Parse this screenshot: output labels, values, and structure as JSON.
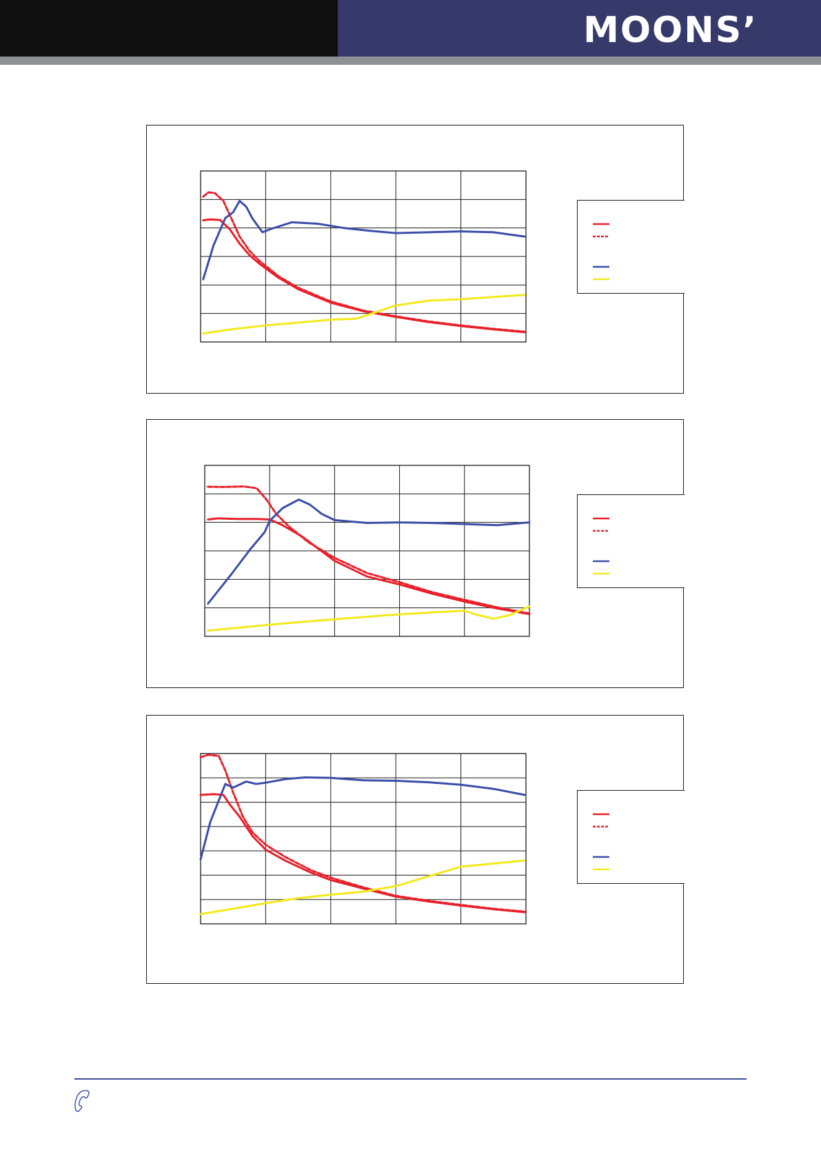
{
  "header": {
    "logo_text": "MOONS’",
    "colors": {
      "black_block": "#0f0f0f",
      "brand_blue": "#363a6b",
      "rule_gray": "#8f9094"
    }
  },
  "series_colors": {
    "torque_solid": "#e8202a",
    "torque_dashed": "#e8202a",
    "blue_curve": "#3a4ea8",
    "yellow_curve": "#f2ea1c"
  },
  "footer": {
    "icon": "phone-icon",
    "rule_color": "#3b4d9a"
  },
  "chart_data": [
    {
      "type": "line",
      "grid": true,
      "legend_position": "right",
      "x_divisions": 5,
      "y_divisions": 6,
      "xlim": [
        0,
        5
      ],
      "ylim": [
        0,
        6
      ],
      "series": [
        {
          "style": "solid",
          "color": "#e8202a",
          "points": [
            [
              0.04,
              4.27
            ],
            [
              0.15,
              4.3
            ],
            [
              0.3,
              4.28
            ],
            [
              0.45,
              3.95
            ],
            [
              0.6,
              3.45
            ],
            [
              0.75,
              3.05
            ],
            [
              0.9,
              2.75
            ],
            [
              1.2,
              2.25
            ],
            [
              1.5,
              1.85
            ],
            [
              2.0,
              1.38
            ],
            [
              2.5,
              1.08
            ],
            [
              3.0,
              0.88
            ],
            [
              3.5,
              0.7
            ],
            [
              4.0,
              0.56
            ],
            [
              4.5,
              0.44
            ],
            [
              4.98,
              0.34
            ]
          ]
        },
        {
          "style": "dashed",
          "color": "#e8202a",
          "points": [
            [
              0.04,
              5.1
            ],
            [
              0.12,
              5.25
            ],
            [
              0.22,
              5.22
            ],
            [
              0.35,
              4.95
            ],
            [
              0.45,
              4.45
            ],
            [
              0.6,
              3.7
            ],
            [
              0.75,
              3.2
            ],
            [
              0.9,
              2.85
            ],
            [
              1.2,
              2.3
            ],
            [
              1.5,
              1.9
            ],
            [
              2.0,
              1.42
            ],
            [
              2.5,
              1.1
            ],
            [
              3.0,
              0.9
            ],
            [
              3.5,
              0.72
            ],
            [
              4.0,
              0.58
            ],
            [
              4.5,
              0.46
            ],
            [
              4.98,
              0.36
            ]
          ]
        },
        {
          "style": "solid",
          "color": "#3a4ea8",
          "points": [
            [
              0.04,
              2.2
            ],
            [
              0.2,
              3.4
            ],
            [
              0.38,
              4.35
            ],
            [
              0.5,
              4.55
            ],
            [
              0.6,
              4.95
            ],
            [
              0.7,
              4.75
            ],
            [
              0.8,
              4.32
            ],
            [
              0.95,
              3.85
            ],
            [
              1.1,
              3.98
            ],
            [
              1.4,
              4.2
            ],
            [
              1.8,
              4.15
            ],
            [
              2.2,
              4.0
            ],
            [
              2.6,
              3.9
            ],
            [
              3.0,
              3.82
            ],
            [
              3.5,
              3.85
            ],
            [
              4.0,
              3.88
            ],
            [
              4.5,
              3.85
            ],
            [
              4.98,
              3.7
            ]
          ]
        },
        {
          "style": "solid",
          "color": "#f2ea1c",
          "points": [
            [
              0.04,
              0.3
            ],
            [
              0.5,
              0.45
            ],
            [
              1.0,
              0.58
            ],
            [
              1.5,
              0.68
            ],
            [
              2.0,
              0.78
            ],
            [
              2.4,
              0.82
            ],
            [
              2.7,
              1.05
            ],
            [
              3.0,
              1.28
            ],
            [
              3.5,
              1.45
            ],
            [
              4.0,
              1.5
            ],
            [
              4.5,
              1.58
            ],
            [
              4.98,
              1.65
            ]
          ]
        }
      ]
    },
    {
      "type": "line",
      "grid": true,
      "legend_position": "right",
      "x_divisions": 5,
      "y_divisions": 6,
      "xlim": [
        0,
        5
      ],
      "ylim": [
        0,
        6
      ],
      "series": [
        {
          "style": "solid",
          "color": "#e8202a",
          "points": [
            [
              0.05,
              4.1
            ],
            [
              0.2,
              4.14
            ],
            [
              0.5,
              4.12
            ],
            [
              0.8,
              4.12
            ],
            [
              1.0,
              4.1
            ],
            [
              1.2,
              3.9
            ],
            [
              1.5,
              3.5
            ],
            [
              2.0,
              2.65
            ],
            [
              2.5,
              2.1
            ],
            [
              3.0,
              1.82
            ],
            [
              3.5,
              1.5
            ],
            [
              4.0,
              1.22
            ],
            [
              4.5,
              0.98
            ],
            [
              5.0,
              0.78
            ]
          ]
        },
        {
          "style": "dashed",
          "color": "#e8202a",
          "points": [
            [
              0.05,
              5.25
            ],
            [
              0.3,
              5.24
            ],
            [
              0.6,
              5.26
            ],
            [
              0.8,
              5.2
            ],
            [
              0.95,
              4.8
            ],
            [
              1.1,
              4.3
            ],
            [
              1.3,
              3.85
            ],
            [
              1.6,
              3.3
            ],
            [
              2.0,
              2.75
            ],
            [
              2.5,
              2.22
            ],
            [
              3.0,
              1.9
            ],
            [
              3.5,
              1.55
            ],
            [
              4.0,
              1.28
            ],
            [
              4.5,
              1.02
            ],
            [
              5.0,
              0.8
            ]
          ]
        },
        {
          "style": "solid",
          "color": "#3a4ea8",
          "points": [
            [
              0.05,
              1.15
            ],
            [
              0.4,
              2.15
            ],
            [
              0.7,
              3.05
            ],
            [
              0.92,
              3.65
            ],
            [
              1.0,
              4.05
            ],
            [
              1.2,
              4.5
            ],
            [
              1.45,
              4.8
            ],
            [
              1.62,
              4.62
            ],
            [
              1.8,
              4.3
            ],
            [
              2.0,
              4.08
            ],
            [
              2.5,
              3.98
            ],
            [
              3.0,
              4.0
            ],
            [
              3.5,
              3.98
            ],
            [
              4.0,
              3.94
            ],
            [
              4.5,
              3.9
            ],
            [
              5.0,
              4.0
            ]
          ]
        },
        {
          "style": "solid",
          "color": "#f2ea1c",
          "points": [
            [
              0.05,
              0.2
            ],
            [
              0.6,
              0.32
            ],
            [
              1.2,
              0.45
            ],
            [
              2.0,
              0.6
            ],
            [
              2.8,
              0.74
            ],
            [
              3.5,
              0.84
            ],
            [
              4.0,
              0.9
            ],
            [
              4.2,
              0.75
            ],
            [
              4.45,
              0.62
            ],
            [
              4.7,
              0.75
            ],
            [
              5.0,
              1.05
            ]
          ]
        }
      ]
    },
    {
      "type": "line",
      "grid": true,
      "legend_position": "right",
      "x_divisions": 5,
      "y_divisions": 7,
      "xlim": [
        0,
        5
      ],
      "ylim": [
        0,
        7
      ],
      "series": [
        {
          "style": "solid",
          "color": "#e8202a",
          "points": [
            [
              0.0,
              5.3
            ],
            [
              0.2,
              5.33
            ],
            [
              0.35,
              5.3
            ],
            [
              0.45,
              4.9
            ],
            [
              0.6,
              4.4
            ],
            [
              0.8,
              3.6
            ],
            [
              1.0,
              3.05
            ],
            [
              1.3,
              2.6
            ],
            [
              1.7,
              2.1
            ],
            [
              2.0,
              1.8
            ],
            [
              2.5,
              1.45
            ],
            [
              3.0,
              1.12
            ],
            [
              3.5,
              0.92
            ],
            [
              4.0,
              0.75
            ],
            [
              4.5,
              0.6
            ],
            [
              4.98,
              0.48
            ]
          ]
        },
        {
          "style": "dashed",
          "color": "#e8202a",
          "points": [
            [
              0.0,
              6.85
            ],
            [
              0.12,
              6.95
            ],
            [
              0.28,
              6.9
            ],
            [
              0.38,
              6.3
            ],
            [
              0.5,
              5.4
            ],
            [
              0.65,
              4.4
            ],
            [
              0.8,
              3.75
            ],
            [
              1.0,
              3.25
            ],
            [
              1.3,
              2.75
            ],
            [
              1.7,
              2.2
            ],
            [
              2.0,
              1.9
            ],
            [
              2.5,
              1.5
            ],
            [
              3.0,
              1.15
            ],
            [
              3.5,
              0.95
            ],
            [
              4.0,
              0.78
            ],
            [
              4.5,
              0.62
            ],
            [
              4.98,
              0.5
            ]
          ]
        },
        {
          "style": "solid",
          "color": "#3a4ea8",
          "points": [
            [
              0.0,
              2.65
            ],
            [
              0.15,
              4.2
            ],
            [
              0.38,
              5.75
            ],
            [
              0.5,
              5.6
            ],
            [
              0.7,
              5.85
            ],
            [
              0.85,
              5.75
            ],
            [
              1.0,
              5.8
            ],
            [
              1.3,
              5.95
            ],
            [
              1.6,
              6.02
            ],
            [
              2.0,
              6.0
            ],
            [
              2.5,
              5.9
            ],
            [
              3.0,
              5.88
            ],
            [
              3.5,
              5.82
            ],
            [
              4.0,
              5.72
            ],
            [
              4.5,
              5.55
            ],
            [
              4.98,
              5.3
            ]
          ]
        },
        {
          "style": "solid",
          "color": "#f2ea1c",
          "points": [
            [
              0.0,
              0.4
            ],
            [
              0.5,
              0.62
            ],
            [
              1.0,
              0.85
            ],
            [
              1.5,
              1.05
            ],
            [
              2.0,
              1.2
            ],
            [
              2.5,
              1.32
            ],
            [
              3.0,
              1.55
            ],
            [
              3.5,
              1.95
            ],
            [
              4.0,
              2.35
            ],
            [
              4.5,
              2.48
            ],
            [
              4.98,
              2.6
            ]
          ]
        }
      ]
    }
  ]
}
